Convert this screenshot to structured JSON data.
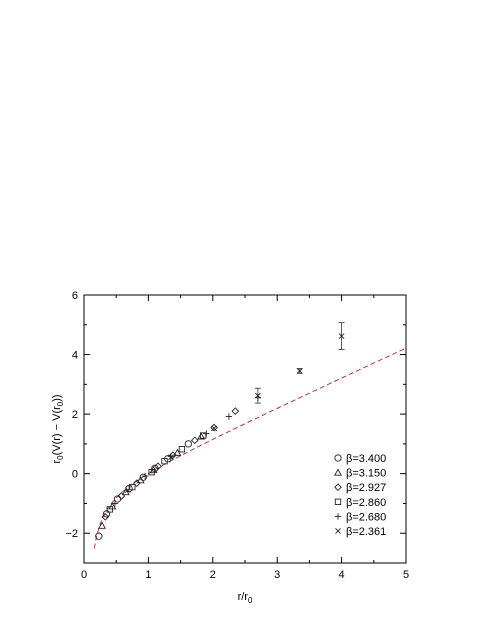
{
  "chart_data": {
    "type": "scatter",
    "title": "",
    "xlabel": "r/r",
    "xlabel_sub": "0",
    "ylabel": "r",
    "ylabel_sub": "0",
    "ylabel_mid": "(V(r) − V(r",
    "ylabel_sub2": "0",
    "ylabel_end": "))",
    "xlim": [
      0,
      5
    ],
    "ylim": [
      -3,
      6
    ],
    "xticks": [
      0,
      1,
      2,
      3,
      4,
      5
    ],
    "yticks": [
      -2,
      0,
      2,
      4,
      6
    ],
    "xtick_labels": [
      "0",
      "1",
      "2",
      "3",
      "4",
      "5"
    ],
    "ytick_labels": [
      "−2",
      "0",
      "2",
      "4",
      "6"
    ],
    "grid": false,
    "legend_position": "bottom-right",
    "colors": {
      "points": "#222222",
      "fit_line": "#b03a3a",
      "fit_dash": "#666666"
    },
    "fit_curve": {
      "style": "dashed",
      "x_start": 0.16,
      "x_end": 5.0,
      "sigma": 0.99,
      "alpha": 0.32,
      "c": 0.6
    },
    "series": [
      {
        "name": "β=3.400",
        "marker": "circle",
        "points": [
          {
            "x": 0.23,
            "y": -2.1
          },
          {
            "x": 0.35,
            "y": -1.35
          },
          {
            "x": 0.52,
            "y": -0.85
          },
          {
            "x": 0.7,
            "y": -0.5
          },
          {
            "x": 0.92,
            "y": -0.12
          },
          {
            "x": 1.1,
            "y": 0.18
          },
          {
            "x": 1.3,
            "y": 0.5
          },
          {
            "x": 1.62,
            "y": 1.0
          }
        ]
      },
      {
        "name": "β=3.150",
        "marker": "triangle",
        "points": [
          {
            "x": 0.28,
            "y": -1.75
          },
          {
            "x": 0.44,
            "y": -1.1
          },
          {
            "x": 0.65,
            "y": -0.62
          },
          {
            "x": 0.88,
            "y": -0.22
          },
          {
            "x": 1.08,
            "y": 0.12
          },
          {
            "x": 1.45,
            "y": 0.7
          },
          {
            "x": 1.82,
            "y": 1.25
          }
        ]
      },
      {
        "name": "β=2.927",
        "marker": "diamond",
        "points": [
          {
            "x": 0.33,
            "y": -1.45
          },
          {
            "x": 0.58,
            "y": -0.75
          },
          {
            "x": 0.82,
            "y": -0.32
          },
          {
            "x": 1.15,
            "y": 0.25
          },
          {
            "x": 1.38,
            "y": 0.62
          },
          {
            "x": 1.72,
            "y": 1.12
          },
          {
            "x": 2.02,
            "y": 1.55
          },
          {
            "x": 2.35,
            "y": 2.1
          }
        ]
      },
      {
        "name": "β=2.860",
        "marker": "square",
        "points": [
          {
            "x": 0.4,
            "y": -1.2
          },
          {
            "x": 0.75,
            "y": -0.45
          },
          {
            "x": 1.05,
            "y": 0.05
          },
          {
            "x": 1.25,
            "y": 0.42
          },
          {
            "x": 1.52,
            "y": 0.82
          },
          {
            "x": 1.85,
            "y": 1.28
          }
        ]
      },
      {
        "name": "β=2.680",
        "marker": "plus",
        "points": [
          {
            "x": 0.48,
            "y": -1.0
          },
          {
            "x": 0.95,
            "y": -0.08
          },
          {
            "x": 1.35,
            "y": 0.58
          },
          {
            "x": 1.9,
            "y": 1.35
          },
          {
            "x": 2.25,
            "y": 1.92
          },
          {
            "x": 2.7,
            "y": 2.55
          }
        ]
      },
      {
        "name": "β=2.361",
        "marker": "cross",
        "points": [
          {
            "x": 0.68,
            "y": -0.55
          },
          {
            "x": 1.35,
            "y": 0.55
          },
          {
            "x": 2.02,
            "y": 1.52
          },
          {
            "x": 2.7,
            "y": 2.62,
            "err": 0.25
          },
          {
            "x": 3.35,
            "y": 3.45,
            "err": 0.08
          },
          {
            "x": 4.0,
            "y": 4.62,
            "err": 0.45
          }
        ]
      }
    ]
  }
}
